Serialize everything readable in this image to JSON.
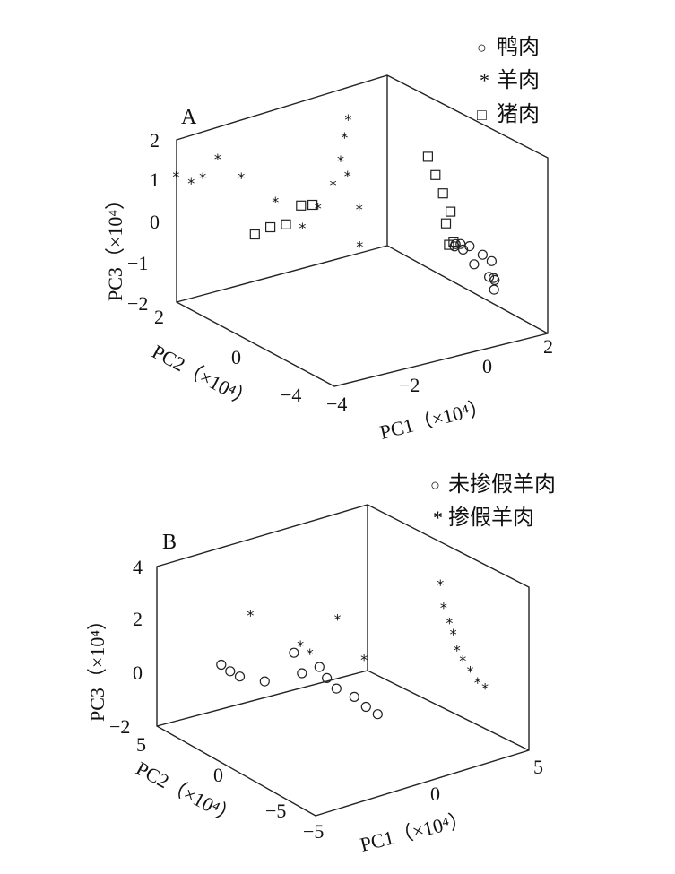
{
  "chart_data": [
    {
      "type": "scatter",
      "panel_label": "A",
      "xlabel": "PC1（×10⁴）",
      "ylabel": "PC2（×10⁴）",
      "zlabel": "PC3（×10⁴）",
      "x_ticks": [
        "−4",
        "−2",
        "0",
        "2"
      ],
      "y_ticks": [
        "2",
        "0",
        "−4"
      ],
      "z_ticks": [
        "2",
        "1",
        "0",
        "−1",
        "−2"
      ],
      "legend": [
        {
          "symbol": "○",
          "label": "鸭肉"
        },
        {
          "symbol": "*",
          "label": "羊肉"
        },
        {
          "symbol": "□",
          "label": "猪肉"
        }
      ],
      "series": [
        {
          "name": "鸭肉",
          "marker": "circle",
          "points": [
            [
              -0.4,
              -2.4,
              -0.7
            ],
            [
              -0.1,
              -2.2,
              -0.5
            ],
            [
              0.3,
              -2.0,
              -0.3
            ],
            [
              0.8,
              -1.8,
              -0.2
            ],
            [
              1.2,
              -1.6,
              -0.1
            ],
            [
              1.4,
              -1.3,
              -0.3
            ],
            [
              1.6,
              -1.2,
              -0.2
            ],
            [
              1.7,
              -1.1,
              -0.4
            ],
            [
              1.8,
              -1.0,
              -0.1
            ],
            [
              -0.6,
              -2.6,
              -0.9
            ],
            [
              -0.3,
              -2.5,
              -0.8
            ],
            [
              0.5,
              -1.9,
              -0.6
            ]
          ]
        },
        {
          "name": "羊肉",
          "marker": "star",
          "points": [
            [
              -3.6,
              1.9,
              0.2
            ],
            [
              -3.4,
              1.7,
              0.1
            ],
            [
              -3.2,
              1.6,
              0.3
            ],
            [
              -3.0,
              1.4,
              0.8
            ],
            [
              -2.5,
              1.3,
              0.6
            ],
            [
              -2.0,
              0.9,
              0.2
            ],
            [
              -1.5,
              0.7,
              -0.2
            ],
            [
              -1.2,
              0.6,
              0.4
            ],
            [
              -1.0,
              0.4,
              1.0
            ],
            [
              -0.9,
              0.3,
              1.6
            ],
            [
              -0.8,
              0.3,
              2.2
            ],
            [
              -0.8,
              0.2,
              2.6
            ],
            [
              -0.9,
              0.1,
              1.2
            ],
            [
              -0.7,
              0.0,
              0.5
            ],
            [
              -0.6,
              0.1,
              -0.3
            ]
          ]
        },
        {
          "name": "猪肉",
          "marker": "square",
          "points": [
            [
              -2.6,
              0.8,
              -0.9
            ],
            [
              -2.3,
              0.7,
              -0.6
            ],
            [
              -2.0,
              0.6,
              -0.4
            ],
            [
              -1.8,
              0.4,
              0.1
            ],
            [
              -1.6,
              0.3,
              0.2
            ],
            [
              -0.3,
              -1.5,
              1.6
            ],
            [
              -0.2,
              -1.6,
              1.2
            ],
            [
              -0.1,
              -1.7,
              0.8
            ],
            [
              0.0,
              -1.8,
              0.4
            ],
            [
              -0.2,
              -1.9,
              0.0
            ],
            [
              -0.1,
              -2.0,
              -0.4
            ],
            [
              -0.3,
              -2.1,
              -0.6
            ]
          ]
        }
      ]
    },
    {
      "type": "scatter",
      "panel_label": "B",
      "xlabel": "PC1（×10⁴）",
      "ylabel": "PC2（×10⁴）",
      "zlabel": "PC3（×10⁴）",
      "x_ticks": [
        "−5",
        "0",
        "5"
      ],
      "y_ticks": [
        "5",
        "0",
        "−5"
      ],
      "z_ticks": [
        "4",
        "2",
        "0",
        "−2"
      ],
      "legend": [
        {
          "symbol": "○",
          "label": "未掺假羊肉"
        },
        {
          "symbol": "*",
          "label": "掺假羊肉"
        }
      ],
      "series": [
        {
          "name": "未掺假羊肉",
          "marker": "circle",
          "points": [
            [
              -4.5,
              3.5,
              -0.4
            ],
            [
              -4.2,
              3.3,
              -0.6
            ],
            [
              -4.0,
              3.0,
              -0.8
            ],
            [
              -3.5,
              2.2,
              -1.0
            ],
            [
              -2.5,
              1.2,
              -0.6
            ],
            [
              -2.2,
              0.6,
              -0.4
            ],
            [
              -2.0,
              0.4,
              -0.8
            ],
            [
              -1.8,
              0.1,
              -1.2
            ],
            [
              -1.6,
              -0.6,
              -1.6
            ],
            [
              -1.4,
              -1.0,
              -2.0
            ],
            [
              -1.2,
              -1.4,
              -2.3
            ],
            [
              -2.6,
              1.5,
              0.2
            ]
          ]
        },
        {
          "name": "掺假羊肉",
          "marker": "star",
          "points": [
            [
              -3.6,
              2.8,
              1.6
            ],
            [
              -2.2,
              1.5,
              0.6
            ],
            [
              -2.0,
              1.2,
              0.3
            ],
            [
              -1.6,
              0.2,
              1.5
            ],
            [
              -1.0,
              -0.6,
              0.0
            ],
            [
              0.6,
              -3.0,
              2.8
            ],
            [
              0.8,
              -3.0,
              2.0
            ],
            [
              0.9,
              -3.2,
              1.4
            ],
            [
              1.0,
              -3.3,
              1.0
            ],
            [
              1.1,
              -3.4,
              0.4
            ],
            [
              1.2,
              -3.6,
              0.0
            ],
            [
              1.4,
              -3.8,
              -0.4
            ],
            [
              1.6,
              -4.0,
              -0.8
            ],
            [
              1.8,
              -4.2,
              -1.0
            ]
          ]
        }
      ]
    }
  ]
}
